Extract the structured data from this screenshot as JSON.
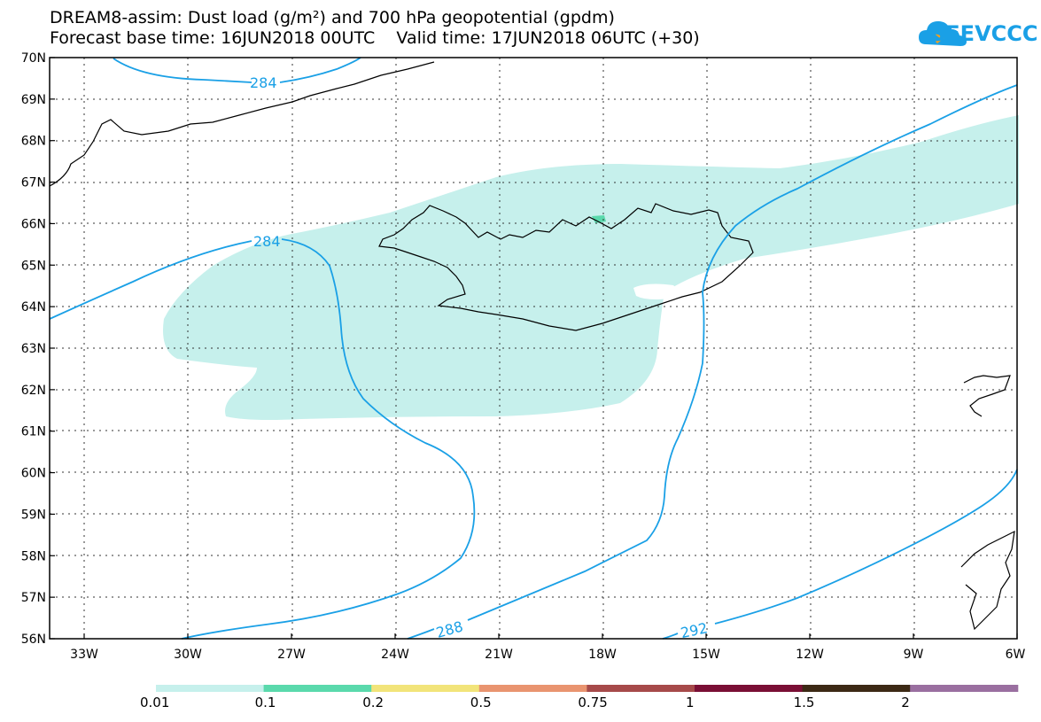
{
  "title": {
    "line1": "DREAM8-assim: Dust load (g/m²) and 700 hPa geopotential (gpdm)",
    "line2": "Forecast base time: 16JUN2018 00UTC    Valid time: 17JUN2018 06UTC (+30)"
  },
  "logo": {
    "text": "SEEVCCC",
    "icon": "cloud-icon",
    "color": "#1aa0e6"
  },
  "map": {
    "lon_range": [
      -34,
      -6
    ],
    "lat_range": [
      56,
      70
    ],
    "lat_ticks": [
      "56N",
      "57N",
      "58N",
      "59N",
      "60N",
      "61N",
      "62N",
      "63N",
      "64N",
      "65N",
      "66N",
      "67N",
      "68N",
      "69N",
      "70N"
    ],
    "lon_ticks": [
      "33W",
      "30W",
      "27W",
      "24W",
      "21W",
      "18W",
      "15W",
      "12W",
      "9W",
      "6W"
    ],
    "contour_labels": [
      "284",
      "284",
      "288",
      "292"
    ],
    "contour_color": "#1aa0e6",
    "dust_color": "#c6f0ec"
  },
  "colorbar": {
    "colors": [
      "#c6f0ec",
      "#5ad9ac",
      "#f2e47a",
      "#e99470",
      "#a64a4a",
      "#7a0f35",
      "#3c2915",
      "#9a6fa0"
    ],
    "labels": [
      "0.01",
      "0.1",
      "0.2",
      "0.5",
      "0.75",
      "1",
      "1.5",
      "2"
    ]
  }
}
